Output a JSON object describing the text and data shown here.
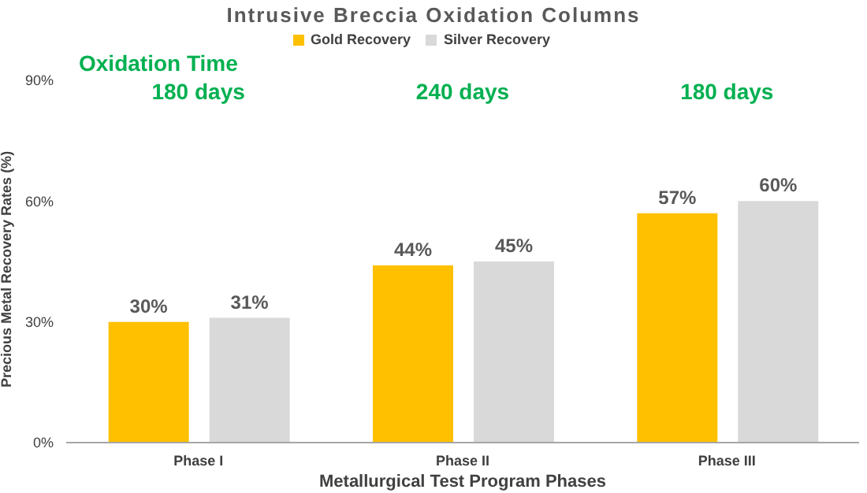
{
  "chart_data": {
    "type": "bar",
    "title": "Intrusive Breccia Oxidation Columns",
    "xlabel": "Metallurgical Test Program Phases",
    "ylabel": "Precious Metal Recovery Rates (%)",
    "categories": [
      "Phase I",
      "Phase II",
      "Phase III"
    ],
    "series": [
      {
        "name": "Gold Recovery",
        "color": "#ffc000",
        "values": [
          30,
          44,
          57
        ],
        "value_labels": [
          "30%",
          "44%",
          "57%"
        ]
      },
      {
        "name": "Silver Recovery",
        "color": "#d9d9d9",
        "values": [
          31,
          45,
          60
        ],
        "value_labels": [
          "31%",
          "45%",
          "60%"
        ]
      }
    ],
    "ylim": [
      0,
      90
    ],
    "yticks": [
      {
        "value": 0,
        "label": "0%"
      },
      {
        "value": 30,
        "label": "30%"
      },
      {
        "value": 60,
        "label": "60%"
      },
      {
        "value": 90,
        "label": "90%"
      }
    ],
    "grid": false,
    "legend": "top",
    "annotations": [
      "Oxidation Time",
      "180 days",
      "240 days",
      "180 days"
    ]
  }
}
